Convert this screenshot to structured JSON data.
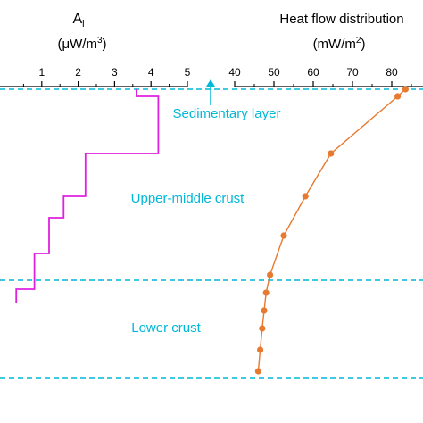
{
  "chart_data": [
    {
      "type": "line",
      "title": "A",
      "title_subscript": "i",
      "unit_prefix": "(μW/m",
      "unit_sup": "3",
      "unit_suffix": ")",
      "ticks": [
        1,
        2,
        3,
        4,
        5
      ],
      "xlim": [
        0,
        5
      ],
      "color": "#e020e0",
      "series": [
        {
          "x": [
            3.6,
            3.6,
            4.2,
            4.2,
            2.2,
            2.2,
            1.6,
            1.6,
            1.2,
            1.2,
            0.8,
            0.8,
            0.3,
            0.3
          ],
          "y": [
            0,
            1,
            1,
            9,
            9,
            15,
            15,
            18,
            18,
            23,
            23,
            28,
            28,
            30
          ]
        }
      ]
    },
    {
      "type": "line",
      "title": "Heat flow distribution",
      "unit_prefix": "(mW/m",
      "unit_sup": "2",
      "unit_suffix": ")",
      "ticks": [
        40,
        50,
        60,
        70,
        80
      ],
      "xlim": [
        40,
        85
      ],
      "color": "#e87a30",
      "series": [
        {
          "x": [
            83.5,
            81.5,
            64.5,
            58.0,
            52.5,
            49.0,
            48.0,
            47.5,
            47.0,
            46.5,
            46.0
          ],
          "y": [
            0,
            1,
            9,
            15,
            20.5,
            26,
            28.5,
            31,
            33.5,
            36.5,
            39.5
          ]
        }
      ]
    }
  ],
  "layers": {
    "sedimentary": "Sedimentary layer",
    "upper_middle": "Upper-middle crust",
    "lower": "Lower crust"
  },
  "line_color": "#00b8d8"
}
